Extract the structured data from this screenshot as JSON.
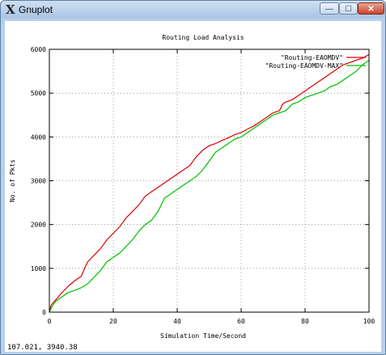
{
  "window": {
    "title": "Gnuplot",
    "icon": "x-logo-icon",
    "controls": {
      "minimize": "—",
      "maximize": "☐",
      "close": "✕"
    }
  },
  "status_bar": {
    "coords": "107.021,  3940.38"
  },
  "colors": {
    "series1": "#e00000",
    "series2": "#00c000",
    "grid": "#888888"
  },
  "chart_data": {
    "type": "line",
    "title": "Routing Load Analysis",
    "xlabel": "Simulation Time/Second",
    "ylabel": "No. of Pkts",
    "xlim": [
      0,
      100
    ],
    "ylim": [
      0,
      6000
    ],
    "xticks": [
      0,
      20,
      40,
      60,
      80,
      100
    ],
    "yticks": [
      0,
      1000,
      2000,
      3000,
      4000,
      5000,
      6000
    ],
    "grid": true,
    "legend_position": "top-right",
    "series": [
      {
        "name": "\"Routing-EAOMDV\"",
        "color": "#e00000",
        "points": [
          [
            0,
            0
          ],
          [
            0.5,
            150
          ],
          [
            1,
            200
          ],
          [
            2,
            280
          ],
          [
            4,
            450
          ],
          [
            6,
            600
          ],
          [
            8,
            720
          ],
          [
            10,
            820
          ],
          [
            11,
            1000
          ],
          [
            12,
            1150
          ],
          [
            14,
            1300
          ],
          [
            16,
            1450
          ],
          [
            18,
            1650
          ],
          [
            20,
            1800
          ],
          [
            22,
            1950
          ],
          [
            24,
            2150
          ],
          [
            26,
            2300
          ],
          [
            28,
            2450
          ],
          [
            30,
            2650
          ],
          [
            32,
            2750
          ],
          [
            34,
            2850
          ],
          [
            36,
            2950
          ],
          [
            38,
            3050
          ],
          [
            40,
            3150
          ],
          [
            42,
            3250
          ],
          [
            44,
            3350
          ],
          [
            46,
            3550
          ],
          [
            48,
            3700
          ],
          [
            50,
            3800
          ],
          [
            52,
            3850
          ],
          [
            54,
            3920
          ],
          [
            56,
            3980
          ],
          [
            58,
            4050
          ],
          [
            60,
            4100
          ],
          [
            62,
            4180
          ],
          [
            64,
            4250
          ],
          [
            66,
            4350
          ],
          [
            68,
            4450
          ],
          [
            70,
            4550
          ],
          [
            72,
            4600
          ],
          [
            73,
            4750
          ],
          [
            74,
            4800
          ],
          [
            76,
            4850
          ],
          [
            78,
            4950
          ],
          [
            80,
            5050
          ],
          [
            82,
            5150
          ],
          [
            84,
            5250
          ],
          [
            86,
            5350
          ],
          [
            88,
            5450
          ],
          [
            90,
            5550
          ],
          [
            92,
            5650
          ],
          [
            94,
            5700
          ],
          [
            96,
            5750
          ],
          [
            98,
            5800
          ],
          [
            100,
            5880
          ]
        ]
      },
      {
        "name": "\"Routing-EAOMDV-MAX\"",
        "color": "#00c000",
        "points": [
          [
            0,
            0
          ],
          [
            0.5,
            80
          ],
          [
            1,
            150
          ],
          [
            2,
            250
          ],
          [
            4,
            350
          ],
          [
            6,
            450
          ],
          [
            8,
            500
          ],
          [
            10,
            560
          ],
          [
            12,
            650
          ],
          [
            14,
            800
          ],
          [
            16,
            950
          ],
          [
            18,
            1150
          ],
          [
            20,
            1250
          ],
          [
            22,
            1350
          ],
          [
            24,
            1500
          ],
          [
            26,
            1650
          ],
          [
            28,
            1850
          ],
          [
            30,
            2000
          ],
          [
            32,
            2100
          ],
          [
            34,
            2300
          ],
          [
            36,
            2600
          ],
          [
            38,
            2700
          ],
          [
            40,
            2800
          ],
          [
            42,
            2900
          ],
          [
            44,
            3000
          ],
          [
            46,
            3100
          ],
          [
            48,
            3250
          ],
          [
            50,
            3450
          ],
          [
            52,
            3650
          ],
          [
            54,
            3750
          ],
          [
            56,
            3850
          ],
          [
            58,
            3950
          ],
          [
            60,
            4000
          ],
          [
            62,
            4100
          ],
          [
            64,
            4200
          ],
          [
            66,
            4300
          ],
          [
            68,
            4400
          ],
          [
            70,
            4500
          ],
          [
            72,
            4550
          ],
          [
            74,
            4600
          ],
          [
            76,
            4750
          ],
          [
            78,
            4800
          ],
          [
            80,
            4900
          ],
          [
            82,
            4950
          ],
          [
            84,
            5000
          ],
          [
            86,
            5050
          ],
          [
            88,
            5150
          ],
          [
            90,
            5200
          ],
          [
            92,
            5300
          ],
          [
            94,
            5400
          ],
          [
            96,
            5500
          ],
          [
            98,
            5650
          ],
          [
            100,
            5750
          ]
        ]
      }
    ]
  }
}
